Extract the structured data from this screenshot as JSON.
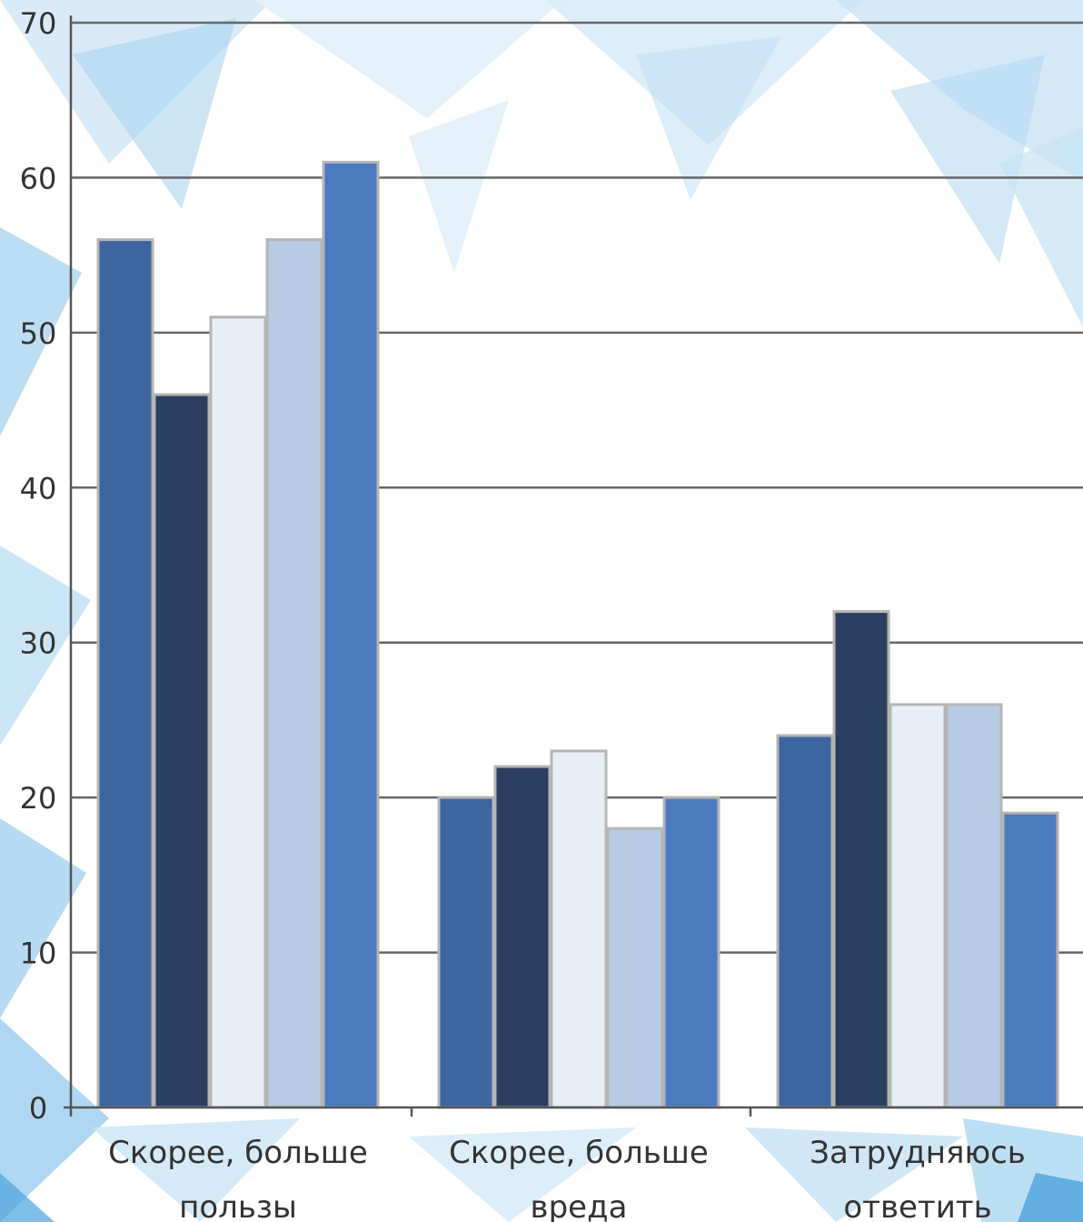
{
  "chart_data": {
    "type": "bar",
    "title": "",
    "xlabel": "",
    "ylabel": "",
    "ylim": [
      0,
      70
    ],
    "yticks": [
      "0",
      "10",
      "20",
      "30",
      "40",
      "50",
      "60",
      "70"
    ],
    "grid": true,
    "legend": "none",
    "categories": [
      [
        "Скорее, больше",
        "пользы"
      ],
      [
        "Скорее, больше",
        "вреда"
      ],
      [
        "Затрудняюсь",
        "ответить"
      ]
    ],
    "series": [
      {
        "color": "#3d65a0",
        "values": [
          56,
          20,
          24
        ]
      },
      {
        "color": "#2a3f5f",
        "values": [
          46,
          22,
          32
        ]
      },
      {
        "color": "#e8eef7",
        "values": [
          51,
          23,
          26
        ]
      },
      {
        "color": "#b7cbe4",
        "values": [
          56,
          18,
          26
        ]
      },
      {
        "color": "#4a7bbf",
        "values": [
          61,
          20,
          19
        ]
      }
    ]
  }
}
